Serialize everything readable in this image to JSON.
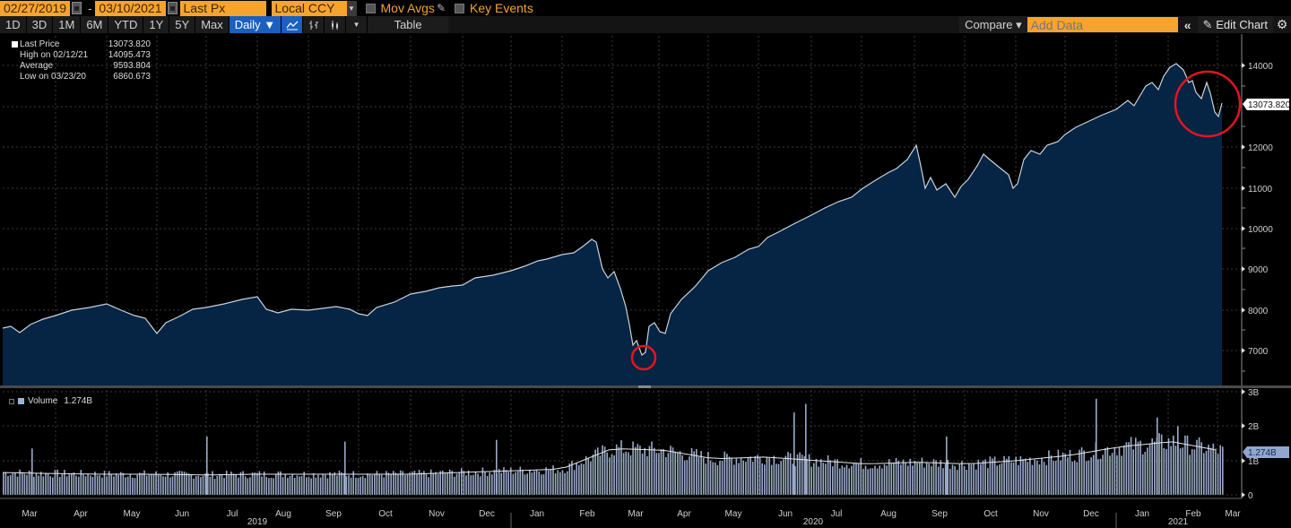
{
  "toolbar": {
    "start_date": "02/27/2019",
    "date_separator": "-",
    "end_date": "03/10/2021",
    "field": "Last Px",
    "currency": "Local CCY",
    "mov_avgs_label": "Mov Avgs",
    "key_events_label": "Key Events",
    "periods": [
      "1D",
      "3D",
      "1M",
      "6M",
      "YTD",
      "1Y",
      "5Y",
      "Max"
    ],
    "frequency": "Daily ▼",
    "table_label": "Table",
    "compare_label": "Compare ▾",
    "add_data_placeholder": "Add Data",
    "collapse_label": "«",
    "edit_chart_label": "Edit Chart",
    "colors": {
      "orange_field": "#f6a430",
      "active_blue": "#1b5fbf"
    }
  },
  "legend": {
    "rows": [
      {
        "label": "Last Price",
        "value": "13073.820"
      },
      {
        "label": "High on 02/12/21",
        "value": "14095.473"
      },
      {
        "label": "Average",
        "value": "9593.804"
      },
      {
        "label": "Low on 03/23/20",
        "value": "6860.673"
      }
    ]
  },
  "volume_legend": {
    "label": "Volume",
    "value": "1.274B"
  },
  "price_tag": "13073.820",
  "volume_tag": "1.274B",
  "chart_data": [
    {
      "type": "area",
      "title": "Last Price",
      "ylabel": "",
      "xlabel": "",
      "ylim": [
        6300,
        14700
      ],
      "yticks": [
        7000,
        8000,
        9000,
        10000,
        11000,
        12000,
        13000,
        14000
      ],
      "ytick_labels": [
        "7000",
        "8000",
        "9000",
        "10000",
        "11000",
        "12000",
        "",
        "14000"
      ],
      "grid": true,
      "line_color": "#c9d2de",
      "fill_color": "#062443",
      "x": [
        "2019-02-27",
        "2019-03-08",
        "2019-03-20",
        "2019-04-01",
        "2019-04-15",
        "2019-04-30",
        "2019-05-13",
        "2019-05-31",
        "2019-06-14",
        "2019-06-28",
        "2019-07-12",
        "2019-07-26",
        "2019-08-05",
        "2019-08-15",
        "2019-08-30",
        "2019-09-12",
        "2019-10-02",
        "2019-10-15",
        "2019-10-31",
        "2019-11-15",
        "2019-11-29",
        "2019-12-13",
        "2019-12-31",
        "2020-01-15",
        "2020-01-31",
        "2020-02-12",
        "2020-02-19",
        "2020-02-27",
        "2020-03-05",
        "2020-03-12",
        "2020-03-16",
        "2020-03-23",
        "2020-03-26",
        "2020-04-01",
        "2020-04-09",
        "2020-04-17",
        "2020-04-30",
        "2020-05-13",
        "2020-05-29",
        "2020-06-08",
        "2020-06-11",
        "2020-06-26",
        "2020-07-15",
        "2020-07-31",
        "2020-08-14",
        "2020-08-28",
        "2020-09-02",
        "2020-09-08",
        "2020-09-23",
        "2020-10-12",
        "2020-10-30",
        "2020-11-09",
        "2020-11-20",
        "2020-12-08",
        "2020-12-31",
        "2021-01-15",
        "2021-01-27",
        "2021-02-12",
        "2021-02-23",
        "2021-03-01",
        "2021-03-04",
        "2021-03-08",
        "2021-03-10"
      ],
      "values": [
        7550,
        7700,
        7800,
        7950,
        8050,
        8150,
        7900,
        7400,
        7950,
        8150,
        8300,
        8250,
        7900,
        7950,
        8050,
        8050,
        7850,
        8000,
        8250,
        8450,
        8500,
        8650,
        8950,
        9250,
        9400,
        9700,
        9820,
        8900,
        8600,
        7400,
        7300,
        6860,
        7600,
        7300,
        7800,
        8350,
        8700,
        9000,
        9400,
        9600,
        10000,
        10050,
        10500,
        11000,
        11350,
        11600,
        12050,
        11200,
        10800,
        11550,
        11000,
        11700,
        11900,
        12400,
        12750,
        13000,
        13200,
        14095,
        13550,
        12950,
        13600,
        12600,
        13074
      ]
    },
    {
      "type": "bar",
      "title": "Volume",
      "ylim": [
        0,
        3000000000
      ],
      "yticks": [
        0,
        1000000000,
        2000000000,
        3000000000
      ],
      "ytick_labels": [
        "0",
        "1B",
        "2B",
        "3B"
      ],
      "grid": true,
      "bar_color": "#9aabc8",
      "moving_average_color": "#e6e6e6",
      "x_segments": [
        "2019-03",
        "2019-04",
        "2019-05",
        "2019-06",
        "2019-07",
        "2019-08",
        "2019-09",
        "2019-10",
        "2019-11",
        "2019-12",
        "2020-01",
        "2020-02",
        "2020-03",
        "2020-04",
        "2020-05",
        "2020-06",
        "2020-07",
        "2020-08",
        "2020-09",
        "2020-10",
        "2020-11",
        "2020-12",
        "2021-01",
        "2021-02",
        "2021-03"
      ],
      "avg_volume_B": [
        0.65,
        0.62,
        0.6,
        0.6,
        0.58,
        0.6,
        0.6,
        0.6,
        0.6,
        0.65,
        0.7,
        0.75,
        1.35,
        1.3,
        1.05,
        1.1,
        1.0,
        0.9,
        0.95,
        0.9,
        1.0,
        1.15,
        1.4,
        1.55,
        1.274
      ],
      "spikes_B": [
        {
          "x": "2019-03-15",
          "v": 1.35
        },
        {
          "x": "2019-06-21",
          "v": 1.7
        },
        {
          "x": "2019-09-20",
          "v": 1.55
        },
        {
          "x": "2019-12-20",
          "v": 1.6
        },
        {
          "x": "2020-06-19",
          "v": 2.4
        },
        {
          "x": "2020-06-26",
          "v": 2.65
        },
        {
          "x": "2020-09-18",
          "v": 1.7
        },
        {
          "x": "2020-12-18",
          "v": 2.8
        },
        {
          "x": "2021-01-22",
          "v": 2.25
        },
        {
          "x": "2021-02-05",
          "v": 2.0
        }
      ]
    }
  ],
  "x_axis": {
    "months": [
      "Mar",
      "Apr",
      "May",
      "Jun",
      "Jul",
      "Aug",
      "Sep",
      "Oct",
      "Nov",
      "Dec",
      "Jan",
      "Feb",
      "Mar",
      "Apr",
      "May",
      "Jun",
      "Jul",
      "Aug",
      "Sep",
      "Oct",
      "Nov",
      "Dec",
      "Jan",
      "Feb",
      "Mar"
    ],
    "years": [
      "2019",
      "2020",
      "2021"
    ]
  },
  "annotations": [
    {
      "type": "circle",
      "color": "#e0161e",
      "note": "March 2020 low"
    },
    {
      "type": "circle",
      "color": "#e0161e",
      "note": "Feb–Mar 2021 pullback"
    }
  ]
}
